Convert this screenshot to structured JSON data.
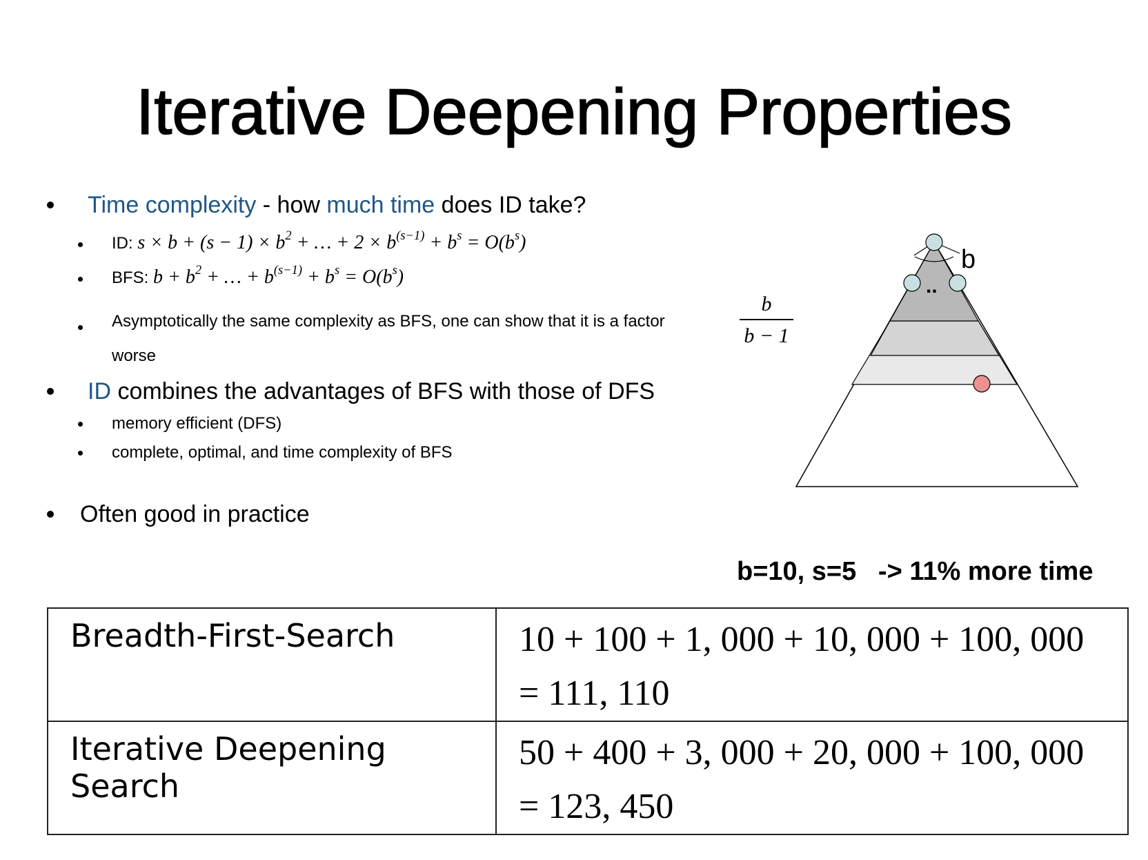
{
  "title": "Iterative Deepening Properties",
  "bullets": {
    "b1": {
      "blue1": "Time complexity",
      "mid": " - how ",
      "blue2": "much time",
      "rest": " does ID take?"
    },
    "b1_sub1": {
      "label": "ID:",
      "formula_parts": [
        "s × b + (s − 1) × b",
        "2",
        " + … + 2 × b",
        "(s−1)",
        " + b",
        "s",
        " = O(b",
        "s",
        ")"
      ]
    },
    "b1_sub2": {
      "label": "BFS:",
      "formula_parts": [
        "b + b",
        "2",
        " + … + b",
        "(s−1)",
        " + b",
        "s",
        " = O(b",
        "s",
        ")"
      ]
    },
    "b1_sub3": {
      "text": "Asymptotically the same complexity as BFS, one can show that it is a factor",
      "cont": "worse",
      "frac_num": "b",
      "frac_den": "b − 1"
    },
    "b2": {
      "blue": "ID",
      "rest": " combines the advantages of BFS with those of DFS"
    },
    "b2_sub1": "memory efficient (DFS)",
    "b2_sub2": "complete, optimal, and time complexity of BFS",
    "b3": "Often good in practice"
  },
  "pyramid": {
    "branch_label": "b",
    "ellipsis": "..",
    "colors": {
      "node": "#c8e0e2",
      "goal": "#ee9090",
      "band_dark": "#b8b8b8",
      "band_mid": "#d4d4d4",
      "band_light": "#e9e9e9"
    }
  },
  "stats": "b=10, s=5   -> 11% more time",
  "table": {
    "rows": [
      {
        "name": "Breadth-First-Search",
        "line1": "10 + 100 + 1, 000 + 10, 000 + 100, 000",
        "line2": "= 111, 110"
      },
      {
        "name": "Iterative Deepening Search",
        "line1": "50 + 400 + 3, 000 + 20, 000 + 100, 000",
        "line2": "= 123, 450"
      }
    ]
  }
}
